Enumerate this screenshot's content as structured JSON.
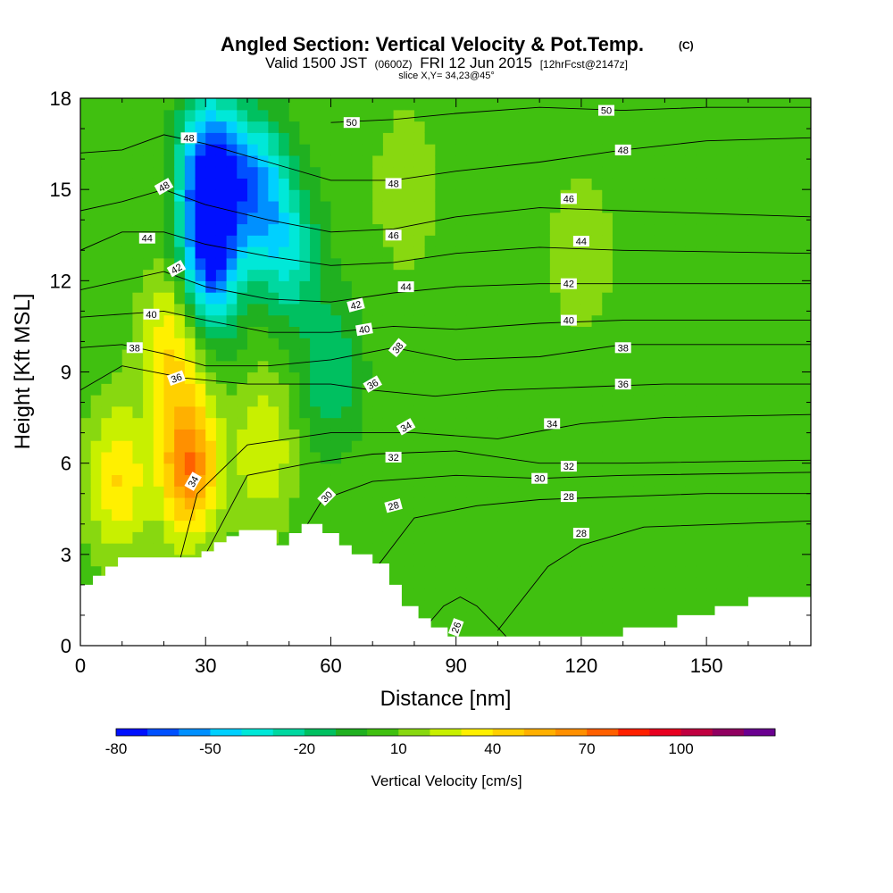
{
  "chart_data": {
    "type": "heatmap",
    "title": "Angled Section: Vertical Velocity & Pot.Temp.",
    "title_mark": "(C)",
    "subtitle_prefix": "Valid 1500 JST",
    "subtitle_z": "(0600Z)",
    "subtitle_date": "FRI 12 Jun 2015",
    "subtitle_fcst": "[12hrFcst@2147z]",
    "slice_label": "slice X,Y= 34,23@45°",
    "xlabel": "Distance [nm]",
    "ylabel": "Height [Kft MSL]",
    "xlim": [
      0,
      175
    ],
    "ylim": [
      0,
      18
    ],
    "x_ticks": [
      "0",
      "30",
      "60",
      "90",
      "120",
      "150"
    ],
    "x_tick_values": [
      0,
      30,
      60,
      90,
      120,
      150
    ],
    "y_ticks": [
      "0",
      "3",
      "6",
      "9",
      "12",
      "15",
      "18"
    ],
    "y_tick_values": [
      0,
      3,
      6,
      9,
      12,
      15,
      18
    ],
    "colorbar": {
      "title": "Vertical Velocity [cm/s]",
      "tick_labels": [
        "-80",
        "-50",
        "-20",
        "10",
        "40",
        "70",
        "100"
      ],
      "levels": [
        -80,
        -70,
        -60,
        -50,
        -40,
        -30,
        -20,
        -10,
        0,
        10,
        20,
        30,
        40,
        50,
        60,
        70,
        80,
        90,
        100,
        110,
        120
      ],
      "colors": [
        "#0010ff",
        "#0050ff",
        "#0090ff",
        "#00d0ff",
        "#00e8d8",
        "#00d8a0",
        "#00c060",
        "#20b020",
        "#40c010",
        "#88d810",
        "#c8f000",
        "#fff000",
        "#ffd000",
        "#ffb000",
        "#ff9000",
        "#ff6000",
        "#ff2000",
        "#e80020",
        "#c00040",
        "#900060",
        "#6a0090"
      ]
    },
    "terrain_profile": [
      [
        0,
        2.0
      ],
      [
        3,
        2.0
      ],
      [
        3,
        2.3
      ],
      [
        6,
        2.3
      ],
      [
        6,
        2.6
      ],
      [
        9,
        2.6
      ],
      [
        9,
        2.9
      ],
      [
        29,
        2.9
      ],
      [
        29,
        3.1
      ],
      [
        32,
        3.1
      ],
      [
        32,
        3.4
      ],
      [
        35,
        3.4
      ],
      [
        35,
        3.6
      ],
      [
        38,
        3.6
      ],
      [
        38,
        3.8
      ],
      [
        47,
        3.8
      ],
      [
        47,
        3.3
      ],
      [
        50,
        3.3
      ],
      [
        50,
        3.7
      ],
      [
        53,
        3.7
      ],
      [
        53,
        4.0
      ],
      [
        58,
        4.0
      ],
      [
        58,
        3.7
      ],
      [
        62,
        3.7
      ],
      [
        62,
        3.3
      ],
      [
        65,
        3.3
      ],
      [
        65,
        3.0
      ],
      [
        70,
        3.0
      ],
      [
        70,
        2.7
      ],
      [
        74,
        2.7
      ],
      [
        74,
        2.0
      ],
      [
        77,
        2.0
      ],
      [
        77,
        1.3
      ],
      [
        81,
        1.3
      ],
      [
        81,
        0.9
      ],
      [
        84,
        0.9
      ],
      [
        84,
        0.6
      ],
      [
        88,
        0.6
      ],
      [
        88,
        0.3
      ],
      [
        130,
        0.3
      ],
      [
        130,
        0.6
      ],
      [
        143,
        0.6
      ],
      [
        143,
        1.0
      ],
      [
        152,
        1.0
      ],
      [
        152,
        1.3
      ],
      [
        160,
        1.3
      ],
      [
        160,
        1.6
      ],
      [
        175,
        1.6
      ]
    ],
    "velocity_features": [
      {
        "x": 31,
        "y": 15.5,
        "value": -80
      },
      {
        "x": 31,
        "y": 12.5,
        "value": -60
      },
      {
        "x": 42,
        "y": 15,
        "value": -50
      },
      {
        "x": 50,
        "y": 13,
        "value": -30
      },
      {
        "x": 60,
        "y": 9,
        "value": -20
      },
      {
        "x": 26,
        "y": 6,
        "value": 70
      },
      {
        "x": 22,
        "y": 10,
        "value": 40
      },
      {
        "x": 9,
        "y": 5.5,
        "value": 40
      },
      {
        "x": 44,
        "y": 6.5,
        "value": 30
      },
      {
        "x": 78,
        "y": 15,
        "value": 20
      },
      {
        "x": 120,
        "y": 13,
        "value": 20
      },
      {
        "x": 120,
        "y": 6,
        "value": 0
      },
      {
        "x": 160,
        "y": 4,
        "value": 10
      }
    ],
    "isentropes": [
      {
        "label": "26",
        "points": [
          [
            82,
            0.5
          ],
          [
            87,
            1.3
          ],
          [
            91,
            1.6
          ],
          [
            95,
            1.3
          ],
          [
            100,
            0.6
          ],
          [
            102,
            0.3
          ]
        ]
      },
      {
        "label": "28",
        "points": [
          [
            65,
            1.5
          ],
          [
            80,
            4.2
          ],
          [
            95,
            4.6
          ],
          [
            110,
            4.8
          ],
          [
            130,
            4.9
          ],
          [
            150,
            5.0
          ],
          [
            175,
            5.0
          ]
        ]
      },
      {
        "label": "28",
        "points": [
          [
            100,
            0.5
          ],
          [
            112,
            2.6
          ],
          [
            120,
            3.3
          ],
          [
            135,
            3.9
          ],
          [
            155,
            4.0
          ],
          [
            175,
            4.1
          ]
        ]
      },
      {
        "label": "30",
        "points": [
          [
            50,
            3.0
          ],
          [
            58,
            4.8
          ],
          [
            70,
            5.4
          ],
          [
            90,
            5.6
          ],
          [
            110,
            5.5
          ],
          [
            130,
            5.6
          ],
          [
            175,
            5.7
          ]
        ]
      },
      {
        "label": "32",
        "points": [
          [
            30,
            3.0
          ],
          [
            40,
            5.6
          ],
          [
            55,
            6.0
          ],
          [
            70,
            6.3
          ],
          [
            90,
            6.4
          ],
          [
            110,
            6.0
          ],
          [
            130,
            6.0
          ],
          [
            175,
            6.1
          ]
        ]
      },
      {
        "label": "34",
        "points": [
          [
            24,
            2.9
          ],
          [
            28,
            5.0
          ],
          [
            40,
            6.6
          ],
          [
            60,
            7.0
          ],
          [
            80,
            7.0
          ],
          [
            100,
            6.8
          ],
          [
            120,
            7.3
          ],
          [
            140,
            7.5
          ],
          [
            175,
            7.6
          ]
        ]
      },
      {
        "label": "36",
        "points": [
          [
            0,
            8.4
          ],
          [
            10,
            9.2
          ],
          [
            25,
            8.8
          ],
          [
            40,
            8.6
          ],
          [
            60,
            8.6
          ],
          [
            70,
            8.4
          ],
          [
            85,
            8.2
          ],
          [
            100,
            8.4
          ],
          [
            120,
            8.5
          ],
          [
            140,
            8.6
          ],
          [
            175,
            8.6
          ]
        ]
      },
      {
        "label": "38",
        "points": [
          [
            0,
            9.8
          ],
          [
            10,
            9.9
          ],
          [
            20,
            9.6
          ],
          [
            30,
            9.2
          ],
          [
            45,
            9.2
          ],
          [
            60,
            9.4
          ],
          [
            75,
            9.8
          ],
          [
            90,
            9.4
          ],
          [
            110,
            9.5
          ],
          [
            130,
            9.9
          ],
          [
            150,
            9.9
          ],
          [
            175,
            9.9
          ]
        ]
      },
      {
        "label": "40",
        "points": [
          [
            0,
            10.8
          ],
          [
            10,
            10.9
          ],
          [
            20,
            11.0
          ],
          [
            30,
            10.7
          ],
          [
            45,
            10.3
          ],
          [
            60,
            10.3
          ],
          [
            75,
            10.5
          ],
          [
            90,
            10.4
          ],
          [
            110,
            10.6
          ],
          [
            130,
            10.7
          ],
          [
            175,
            10.7
          ]
        ]
      },
      {
        "label": "42",
        "points": [
          [
            0,
            11.7
          ],
          [
            10,
            12.0
          ],
          [
            20,
            12.3
          ],
          [
            30,
            11.8
          ],
          [
            45,
            11.4
          ],
          [
            60,
            11.3
          ],
          [
            75,
            11.6
          ],
          [
            90,
            11.8
          ],
          [
            110,
            11.9
          ],
          [
            130,
            11.9
          ],
          [
            175,
            11.9
          ]
        ]
      },
      {
        "label": "44",
        "points": [
          [
            0,
            13.0
          ],
          [
            10,
            13.6
          ],
          [
            20,
            13.6
          ],
          [
            30,
            13.2
          ],
          [
            45,
            12.8
          ],
          [
            60,
            12.5
          ],
          [
            75,
            12.6
          ],
          [
            90,
            12.9
          ],
          [
            110,
            13.1
          ],
          [
            130,
            13.0
          ],
          [
            175,
            12.9
          ]
        ]
      },
      {
        "label": "46",
        "points": [
          [
            0,
            14.3
          ],
          [
            10,
            14.6
          ],
          [
            20,
            15.0
          ],
          [
            30,
            14.5
          ],
          [
            45,
            14.0
          ],
          [
            60,
            13.6
          ],
          [
            75,
            13.7
          ],
          [
            90,
            14.1
          ],
          [
            110,
            14.4
          ],
          [
            130,
            14.3
          ],
          [
            175,
            14.1
          ]
        ]
      },
      {
        "label": "48",
        "points": [
          [
            0,
            16.2
          ],
          [
            10,
            16.3
          ],
          [
            20,
            16.8
          ],
          [
            30,
            16.5
          ],
          [
            45,
            15.9
          ],
          [
            60,
            15.3
          ],
          [
            75,
            15.3
          ],
          [
            90,
            15.6
          ],
          [
            110,
            15.9
          ],
          [
            130,
            16.3
          ],
          [
            150,
            16.6
          ],
          [
            175,
            16.7
          ]
        ]
      },
      {
        "label": "50",
        "points": [
          [
            60,
            17.2
          ],
          [
            75,
            17.3
          ],
          [
            90,
            17.5
          ],
          [
            110,
            17.7
          ],
          [
            130,
            17.6
          ],
          [
            150,
            17.7
          ],
          [
            175,
            17.7
          ]
        ]
      }
    ],
    "contour_labels": [
      {
        "text": "48",
        "x": 26,
        "y": 16.7,
        "rot": 0
      },
      {
        "text": "48",
        "x": 20,
        "y": 15.1,
        "rot": -30
      },
      {
        "text": "44",
        "x": 16,
        "y": 13.4,
        "rot": 0
      },
      {
        "text": "42",
        "x": 23,
        "y": 12.4,
        "rot": -30
      },
      {
        "text": "40",
        "x": 17,
        "y": 10.9,
        "rot": 0
      },
      {
        "text": "38",
        "x": 13,
        "y": 9.8,
        "rot": 0
      },
      {
        "text": "36",
        "x": 23,
        "y": 8.8,
        "rot": -20
      },
      {
        "text": "34",
        "x": 27,
        "y": 5.4,
        "rot": -60
      },
      {
        "text": "50",
        "x": 65,
        "y": 17.2,
        "rot": 0
      },
      {
        "text": "48",
        "x": 75,
        "y": 15.2,
        "rot": 0
      },
      {
        "text": "46",
        "x": 75,
        "y": 13.5,
        "rot": 0
      },
      {
        "text": "44",
        "x": 78,
        "y": 11.8,
        "rot": 0
      },
      {
        "text": "42",
        "x": 66,
        "y": 11.2,
        "rot": -15
      },
      {
        "text": "40",
        "x": 68,
        "y": 10.4,
        "rot": -10
      },
      {
        "text": "38",
        "x": 76,
        "y": 9.8,
        "rot": -50
      },
      {
        "text": "36",
        "x": 70,
        "y": 8.6,
        "rot": -30
      },
      {
        "text": "34",
        "x": 78,
        "y": 7.2,
        "rot": -30
      },
      {
        "text": "32",
        "x": 75,
        "y": 6.2,
        "rot": 0
      },
      {
        "text": "30",
        "x": 59,
        "y": 4.9,
        "rot": -45
      },
      {
        "text": "28",
        "x": 75,
        "y": 4.6,
        "rot": -15
      },
      {
        "text": "26",
        "x": 90,
        "y": 0.6,
        "rot": -70
      },
      {
        "text": "50",
        "x": 126,
        "y": 17.6,
        "rot": 0
      },
      {
        "text": "48",
        "x": 130,
        "y": 16.3,
        "rot": 0
      },
      {
        "text": "46",
        "x": 117,
        "y": 14.7,
        "rot": 0
      },
      {
        "text": "44",
        "x": 120,
        "y": 13.3,
        "rot": 0
      },
      {
        "text": "42",
        "x": 117,
        "y": 11.9,
        "rot": 0
      },
      {
        "text": "40",
        "x": 117,
        "y": 10.7,
        "rot": 0
      },
      {
        "text": "38",
        "x": 130,
        "y": 9.8,
        "rot": 0
      },
      {
        "text": "36",
        "x": 130,
        "y": 8.6,
        "rot": 0
      },
      {
        "text": "34",
        "x": 113,
        "y": 7.3,
        "rot": 0
      },
      {
        "text": "32",
        "x": 117,
        "y": 5.9,
        "rot": 0
      },
      {
        "text": "30",
        "x": 110,
        "y": 5.5,
        "rot": 0
      },
      {
        "text": "28",
        "x": 117,
        "y": 4.9,
        "rot": 0
      },
      {
        "text": "28",
        "x": 120,
        "y": 3.7,
        "rot": 0
      }
    ]
  }
}
